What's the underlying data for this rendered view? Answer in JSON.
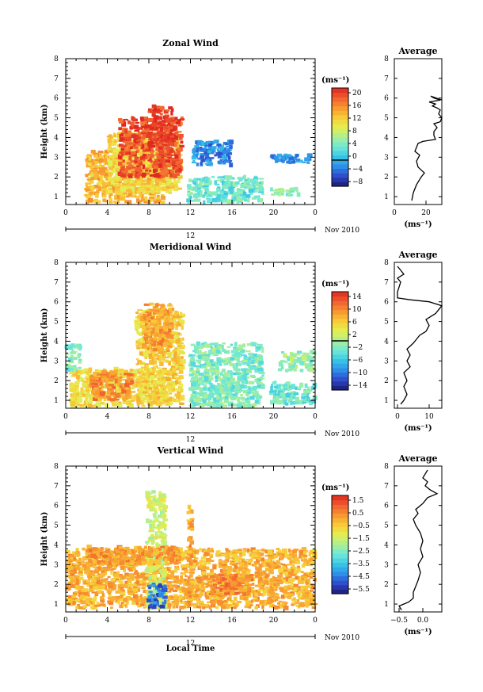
{
  "chart_data": [
    {
      "type": "heatmap",
      "title": "Zonal Wind",
      "ylabel": "Height (km)",
      "y_ticks": [
        "1",
        "2",
        "3",
        "4",
        "5",
        "6",
        "7",
        "8"
      ],
      "x_ticks": [
        "0",
        "4",
        "8",
        "12",
        "16",
        "20",
        "0"
      ],
      "date_label": "12",
      "date_suffix": "Nov 2010",
      "colorbar": {
        "unit": "(ms⁻¹)",
        "min": -8,
        "max": 22,
        "ticks": [
          "20",
          "16",
          "12",
          "8",
          "4",
          "0",
          "−4",
          "−8"
        ],
        "zero_value": 0
      },
      "average": {
        "title": "Average",
        "unit": "(ms⁻¹)",
        "x_ticks": [
          "0",
          "20"
        ],
        "xlim": [
          0,
          30
        ],
        "points": [
          [
            11,
            0.8
          ],
          [
            12,
            1.2
          ],
          [
            14,
            1.6
          ],
          [
            17,
            2.0
          ],
          [
            19,
            2.2
          ],
          [
            15,
            2.5
          ],
          [
            14,
            2.8
          ],
          [
            16,
            3.1
          ],
          [
            13,
            3.3
          ],
          [
            14,
            3.5
          ],
          [
            15,
            3.7
          ],
          [
            18,
            3.8
          ],
          [
            26,
            3.9
          ],
          [
            25,
            4.1
          ],
          [
            25,
            4.3
          ],
          [
            27,
            4.5
          ],
          [
            25,
            4.7
          ],
          [
            29,
            4.8
          ],
          [
            30,
            5.0
          ],
          [
            28,
            5.2
          ],
          [
            29,
            5.4
          ],
          [
            27,
            5.5
          ],
          [
            24,
            5.6
          ],
          [
            26,
            5.7
          ],
          [
            22,
            5.8
          ],
          [
            29,
            5.9
          ],
          [
            25,
            6.0
          ],
          [
            23,
            6.1
          ],
          [
            30,
            5.9
          ]
        ]
      },
      "blobs": [
        {
          "x0": 2.0,
          "x1": 9.5,
          "y0": 0.7,
          "y1": 3.3,
          "v": 14
        },
        {
          "x0": 4.2,
          "x1": 11.0,
          "y0": 1.2,
          "y1": 4.2,
          "v": 12
        },
        {
          "x0": 5.2,
          "x1": 11.2,
          "y0": 2.0,
          "y1": 5.0,
          "v": 20
        },
        {
          "x0": 8.0,
          "x1": 10.3,
          "y0": 3.5,
          "y1": 5.6,
          "v": 21
        },
        {
          "x0": 11.8,
          "x1": 19.0,
          "y0": 0.7,
          "y1": 2.0,
          "v": 4
        },
        {
          "x0": 12.3,
          "x1": 16.0,
          "y0": 2.6,
          "y1": 3.8,
          "v": -2
        },
        {
          "x0": 19.8,
          "x1": 23.8,
          "y0": 2.7,
          "y1": 3.1,
          "v": -1
        },
        {
          "x0": 19.8,
          "x1": 22.5,
          "y0": 1.0,
          "y1": 1.4,
          "v": 6
        }
      ]
    },
    {
      "type": "heatmap",
      "title": "Meridional Wind",
      "ylabel": "Height (km)",
      "y_ticks": [
        "1",
        "2",
        "3",
        "4",
        "5",
        "6",
        "7",
        "8"
      ],
      "x_ticks": [
        "0",
        "4",
        "8",
        "12",
        "16",
        "20",
        "0"
      ],
      "date_label": "12",
      "date_suffix": "Nov 2010",
      "colorbar": {
        "unit": "(ms⁻¹)",
        "min": -16,
        "max": 16,
        "ticks": [
          "14",
          "10",
          "6",
          "2",
          "−2",
          "−6",
          "−10",
          "−14"
        ],
        "zero_value": 0
      },
      "average": {
        "title": "Average",
        "unit": "(ms⁻¹)",
        "x_ticks": [
          "0",
          "10"
        ],
        "xlim": [
          -1,
          14
        ],
        "points": [
          [
            1,
            0.8
          ],
          [
            2,
            1.0
          ],
          [
            3,
            1.3
          ],
          [
            2,
            1.7
          ],
          [
            3,
            2.0
          ],
          [
            2,
            2.4
          ],
          [
            4,
            2.7
          ],
          [
            3,
            3.0
          ],
          [
            4,
            3.3
          ],
          [
            3,
            3.6
          ],
          [
            5,
            3.9
          ],
          [
            6,
            4.1
          ],
          [
            7,
            4.3
          ],
          [
            9,
            4.5
          ],
          [
            10,
            4.8
          ],
          [
            9,
            5.1
          ],
          [
            12,
            5.4
          ],
          [
            13,
            5.6
          ],
          [
            14,
            5.8
          ],
          [
            10,
            6.0
          ],
          [
            4,
            6.1
          ],
          [
            0,
            6.2
          ],
          [
            0,
            6.5
          ],
          [
            1,
            7.0
          ],
          [
            0,
            7.2
          ],
          [
            2,
            7.4
          ],
          [
            1,
            7.6
          ],
          [
            0,
            7.8
          ]
        ]
      },
      "blobs": [
        {
          "x0": 0.5,
          "x1": 9.5,
          "y0": 0.7,
          "y1": 2.6,
          "v": 5
        },
        {
          "x0": 2.5,
          "x1": 6.5,
          "y0": 1.0,
          "y1": 2.5,
          "v": 10
        },
        {
          "x0": 6.8,
          "x1": 11.3,
          "y0": 0.8,
          "y1": 5.6,
          "v": 6
        },
        {
          "x0": 7.5,
          "x1": 10.2,
          "y0": 3.5,
          "y1": 5.9,
          "v": 9
        },
        {
          "x0": 0.1,
          "x1": 1.5,
          "y0": 2.5,
          "y1": 3.8,
          "v": -2
        },
        {
          "x0": 12.0,
          "x1": 19.0,
          "y0": 0.7,
          "y1": 3.9,
          "v": -2
        },
        {
          "x0": 19.8,
          "x1": 24.0,
          "y0": 0.8,
          "y1": 1.9,
          "v": -3
        },
        {
          "x0": 20.5,
          "x1": 24.0,
          "y0": 2.5,
          "y1": 3.5,
          "v": -1
        }
      ]
    },
    {
      "type": "heatmap",
      "title": "Vertical Wind",
      "ylabel": "Height (km)",
      "xlabel": "Local Time",
      "y_ticks": [
        "1",
        "2",
        "3",
        "4",
        "5",
        "6",
        "7",
        "8"
      ],
      "x_ticks": [
        "0",
        "4",
        "8",
        "12",
        "16",
        "20",
        "0"
      ],
      "date_label": "12",
      "date_suffix": "Nov 2010",
      "colorbar": {
        "unit": "(ms⁻¹)",
        "min": -6,
        "max": 2,
        "ticks": [
          "1.5",
          "0.5",
          "−0.5",
          "−1.5",
          "−2.5",
          "−3.5",
          "−4.5",
          "−5.5"
        ]
      },
      "average": {
        "title": "Average",
        "unit": "(ms⁻¹)",
        "x_ticks": [
          "−0.5",
          "0.0"
        ],
        "xlim": [
          -0.6,
          0.4
        ],
        "points": [
          [
            -0.45,
            0.7
          ],
          [
            -0.5,
            0.9
          ],
          [
            -0.3,
            1.1
          ],
          [
            -0.2,
            1.3
          ],
          [
            -0.2,
            1.6
          ],
          [
            -0.15,
            1.9
          ],
          [
            -0.1,
            2.2
          ],
          [
            -0.05,
            2.6
          ],
          [
            -0.1,
            3.0
          ],
          [
            0.0,
            3.4
          ],
          [
            -0.05,
            3.8
          ],
          [
            0.0,
            4.2
          ],
          [
            -0.05,
            4.6
          ],
          [
            -0.15,
            5.0
          ],
          [
            -0.2,
            5.3
          ],
          [
            -0.1,
            5.6
          ],
          [
            -0.15,
            5.8
          ],
          [
            0.0,
            6.1
          ],
          [
            0.1,
            6.4
          ],
          [
            0.3,
            6.6
          ],
          [
            0.15,
            6.8
          ],
          [
            0.05,
            7.0
          ],
          [
            0.1,
            7.2
          ],
          [
            0.0,
            7.4
          ],
          [
            0.05,
            7.6
          ],
          [
            0.1,
            7.8
          ]
        ]
      },
      "blobs": [
        {
          "x0": 0.1,
          "x1": 24.0,
          "y0": 0.8,
          "y1": 3.8,
          "v": 0.0
        },
        {
          "x0": 7.8,
          "x1": 9.6,
          "y0": 0.8,
          "y1": 6.7,
          "v": -1.5
        },
        {
          "x0": 8.0,
          "x1": 9.6,
          "y0": 0.8,
          "y1": 2.0,
          "v": -4.8
        },
        {
          "x0": 2.0,
          "x1": 11.0,
          "y0": 3.0,
          "y1": 3.9,
          "v": 0.3
        },
        {
          "x0": 14.0,
          "x1": 18.0,
          "y0": 1.5,
          "y1": 2.5,
          "v": 0.6
        },
        {
          "x0": 11.8,
          "x1": 12.2,
          "y0": 0.8,
          "y1": 6.0,
          "v": 0.2
        }
      ]
    }
  ]
}
